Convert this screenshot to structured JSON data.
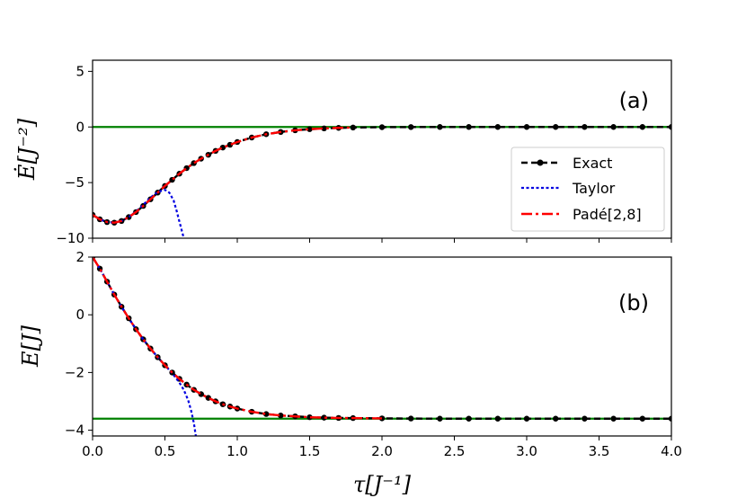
{
  "chart_data": [
    {
      "type": "line",
      "panel_label": "(a)",
      "ylabel": "Ė[J⁻²]",
      "xlim": [
        0,
        4
      ],
      "ylim": [
        -10,
        6
      ],
      "yticks": [
        -10,
        -5,
        0,
        5
      ],
      "ytick_labels": [
        "−10",
        "−5",
        "0",
        "5"
      ],
      "hline": {
        "y": 0,
        "color": "#008000"
      },
      "legend": {
        "placement": "center-right"
      },
      "series": [
        {
          "name": "Exact",
          "style": "dashed-dots",
          "color": "#000000",
          "x": [
            0.0,
            0.05,
            0.1,
            0.15,
            0.2,
            0.25,
            0.3,
            0.35,
            0.4,
            0.45,
            0.5,
            0.55,
            0.6,
            0.65,
            0.7,
            0.75,
            0.8,
            0.85,
            0.9,
            0.95,
            1.0,
            1.1,
            1.2,
            1.3,
            1.4,
            1.5,
            1.6,
            1.7,
            1.8,
            2.0,
            2.2,
            2.4,
            2.6,
            2.8,
            3.0,
            3.2,
            3.4,
            3.6,
            3.8,
            4.0
          ],
          "y": [
            -7.9,
            -8.3,
            -8.55,
            -8.6,
            -8.45,
            -8.1,
            -7.65,
            -7.1,
            -6.5,
            -5.9,
            -5.3,
            -4.75,
            -4.2,
            -3.7,
            -3.25,
            -2.85,
            -2.5,
            -2.15,
            -1.85,
            -1.6,
            -1.35,
            -0.95,
            -0.65,
            -0.45,
            -0.3,
            -0.2,
            -0.13,
            -0.08,
            -0.05,
            -0.02,
            -0.01,
            0,
            0,
            0,
            0,
            0,
            0,
            0,
            0,
            0
          ]
        },
        {
          "name": "Taylor",
          "style": "dotted",
          "color": "#0000e0",
          "x": [
            0.0,
            0.05,
            0.1,
            0.15,
            0.2,
            0.25,
            0.3,
            0.35,
            0.4,
            0.45,
            0.5,
            0.53,
            0.56,
            0.58,
            0.6,
            0.62,
            0.635
          ],
          "y": [
            -7.9,
            -8.3,
            -8.55,
            -8.6,
            -8.45,
            -8.1,
            -7.6,
            -7.0,
            -6.35,
            -5.85,
            -5.65,
            -5.9,
            -6.6,
            -7.5,
            -8.5,
            -9.5,
            -10.2
          ]
        },
        {
          "name": "Padé[2,8]",
          "style": "dash-dot",
          "color": "#ff0000",
          "x": [
            0.0,
            0.05,
            0.1,
            0.15,
            0.2,
            0.25,
            0.3,
            0.35,
            0.4,
            0.45,
            0.5,
            0.55,
            0.6,
            0.65,
            0.7,
            0.75,
            0.8,
            0.85,
            0.9,
            0.95,
            1.0,
            1.1,
            1.2,
            1.3,
            1.4,
            1.5,
            1.6,
            1.7,
            1.8
          ],
          "y": [
            -7.9,
            -8.3,
            -8.55,
            -8.6,
            -8.45,
            -8.1,
            -7.65,
            -7.1,
            -6.5,
            -5.9,
            -5.3,
            -4.75,
            -4.2,
            -3.7,
            -3.25,
            -2.85,
            -2.5,
            -2.15,
            -1.85,
            -1.6,
            -1.35,
            -0.95,
            -0.65,
            -0.45,
            -0.3,
            -0.2,
            -0.13,
            -0.08,
            -0.05
          ]
        }
      ]
    },
    {
      "type": "line",
      "panel_label": "(b)",
      "ylabel": "E[J]",
      "xlabel": "τ[J⁻¹]",
      "xlim": [
        0,
        4
      ],
      "ylim": [
        -4.2,
        2
      ],
      "xticks": [
        0,
        0.5,
        1,
        1.5,
        2,
        2.5,
        3,
        3.5,
        4
      ],
      "xtick_labels": [
        "0.0",
        "0.5",
        "1.0",
        "1.5",
        "2.0",
        "2.5",
        "3.0",
        "3.5",
        "4.0"
      ],
      "yticks": [
        -4,
        -2,
        0,
        2
      ],
      "ytick_labels": [
        "−4",
        "−2",
        "0",
        "2"
      ],
      "hline": {
        "y": -3.6,
        "color": "#008000"
      },
      "series": [
        {
          "name": "Exact",
          "style": "dashed-dots",
          "color": "#000000",
          "x": [
            0.0,
            0.05,
            0.1,
            0.15,
            0.2,
            0.25,
            0.3,
            0.35,
            0.4,
            0.45,
            0.5,
            0.55,
            0.6,
            0.65,
            0.7,
            0.75,
            0.8,
            0.85,
            0.9,
            0.95,
            1.0,
            1.1,
            1.2,
            1.3,
            1.4,
            1.5,
            1.6,
            1.7,
            1.8,
            2.0,
            2.2,
            2.4,
            2.6,
            2.8,
            3.0,
            3.2,
            3.4,
            3.6,
            3.8,
            4.0
          ],
          "y": [
            2.0,
            1.6,
            1.15,
            0.7,
            0.28,
            -0.12,
            -0.5,
            -0.85,
            -1.17,
            -1.47,
            -1.75,
            -2.0,
            -2.22,
            -2.42,
            -2.6,
            -2.75,
            -2.88,
            -3.0,
            -3.1,
            -3.18,
            -3.25,
            -3.36,
            -3.44,
            -3.49,
            -3.52,
            -3.55,
            -3.565,
            -3.575,
            -3.58,
            -3.59,
            -3.595,
            -3.6,
            -3.6,
            -3.6,
            -3.6,
            -3.6,
            -3.6,
            -3.6,
            -3.6,
            -3.6
          ]
        },
        {
          "name": "Taylor",
          "style": "dotted",
          "color": "#0000e0",
          "x": [
            0.0,
            0.05,
            0.1,
            0.15,
            0.2,
            0.25,
            0.3,
            0.35,
            0.4,
            0.45,
            0.5,
            0.55,
            0.6,
            0.63,
            0.66,
            0.68,
            0.7,
            0.715
          ],
          "y": [
            2.0,
            1.6,
            1.15,
            0.7,
            0.28,
            -0.12,
            -0.5,
            -0.85,
            -1.17,
            -1.47,
            -1.75,
            -2.02,
            -2.35,
            -2.6,
            -2.95,
            -3.3,
            -3.75,
            -4.25
          ]
        },
        {
          "name": "Padé[2,8]",
          "style": "dash-dot",
          "color": "#ff0000",
          "x": [
            0.0,
            0.05,
            0.1,
            0.15,
            0.2,
            0.25,
            0.3,
            0.35,
            0.4,
            0.45,
            0.5,
            0.55,
            0.6,
            0.65,
            0.7,
            0.75,
            0.8,
            0.85,
            0.9,
            0.95,
            1.0,
            1.1,
            1.2,
            1.3,
            1.4,
            1.5,
            1.6,
            1.7,
            1.8,
            2.0
          ],
          "y": [
            2.0,
            1.6,
            1.15,
            0.7,
            0.28,
            -0.12,
            -0.5,
            -0.85,
            -1.17,
            -1.47,
            -1.75,
            -2.0,
            -2.22,
            -2.42,
            -2.6,
            -2.75,
            -2.88,
            -3.0,
            -3.1,
            -3.18,
            -3.25,
            -3.36,
            -3.44,
            -3.49,
            -3.52,
            -3.55,
            -3.565,
            -3.575,
            -3.58,
            -3.59
          ]
        }
      ]
    }
  ]
}
